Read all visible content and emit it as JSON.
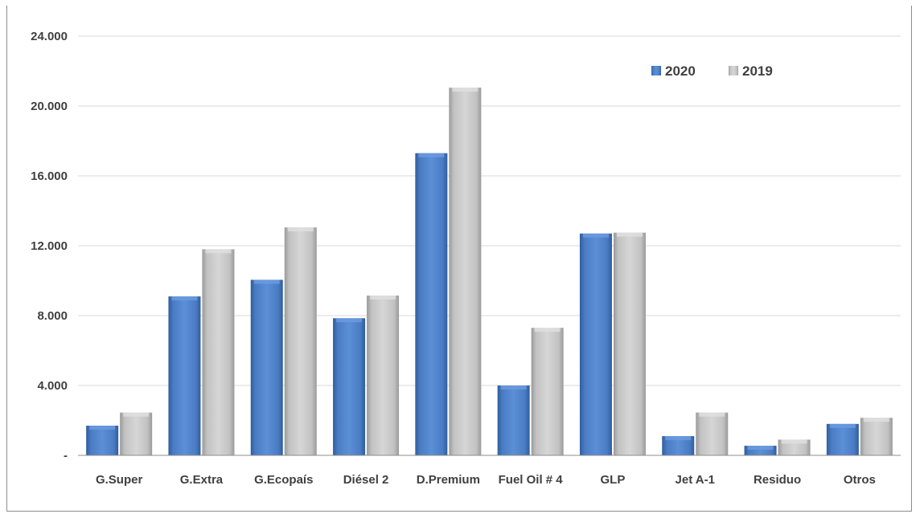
{
  "chart_data": {
    "type": "bar",
    "categories": [
      "G.Super",
      "G.Extra",
      "G.Ecopaís",
      "Diésel 2",
      "D.Premium",
      "Fuel Oil # 4",
      "GLP",
      "Jet A-1",
      "Residuo",
      "Otros"
    ],
    "series": [
      {
        "name": "2020",
        "color": "#4a7cc4",
        "values": [
          1700,
          9100,
          10050,
          7850,
          17300,
          4000,
          12700,
          1100,
          550,
          1800
        ]
      },
      {
        "name": "2019",
        "color": "#c4c4c4",
        "values": [
          2450,
          11800,
          13050,
          9150,
          21050,
          7300,
          12750,
          2450,
          900,
          2150
        ]
      }
    ],
    "y_ticks": [
      "-",
      "4.000",
      "8.000",
      "12.000",
      "16.000",
      "20.000",
      "24.000"
    ],
    "ylim": [
      0,
      24000
    ],
    "grid": true,
    "legend_position": "top-right",
    "title": "",
    "xlabel": "",
    "ylabel": ""
  }
}
